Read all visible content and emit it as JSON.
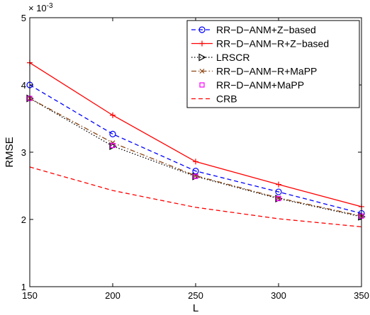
{
  "chart_data": {
    "type": "line",
    "xlabel": "L",
    "ylabel": "RMSE",
    "y_exponent_label": "× 10",
    "y_exponent_power": "-3",
    "xlim": [
      150,
      350
    ],
    "ylim": [
      1,
      5
    ],
    "x_ticks": [
      150,
      200,
      250,
      300,
      350
    ],
    "y_ticks": [
      1,
      2,
      3,
      4,
      5
    ],
    "grid": false,
    "legend_position": "top-right",
    "x": [
      150,
      200,
      250,
      300,
      350
    ],
    "series": [
      {
        "name": "RR−D−ANM+Z−based",
        "values": [
          4.0,
          3.27,
          2.72,
          2.41,
          2.09
        ],
        "color": "#0000ff",
        "dash": "dashed",
        "marker": "circle"
      },
      {
        "name": "RR−D−ANM−R+Z−based",
        "values": [
          4.33,
          3.55,
          2.86,
          2.52,
          2.19
        ],
        "color": "#ff0000",
        "dash": "solid",
        "marker": "plus"
      },
      {
        "name": "LRSCR",
        "values": [
          3.8,
          3.09,
          2.64,
          2.31,
          2.04
        ],
        "color": "#000000",
        "dash": "dotted",
        "marker": "triangle-right"
      },
      {
        "name": "RR−D−ANM−R+MaPP",
        "values": [
          3.8,
          3.14,
          2.65,
          2.32,
          2.05
        ],
        "color": "#8b4513",
        "dash": "dashdot",
        "marker": "x"
      },
      {
        "name": "RR−D−ANM+MaPP",
        "values": [
          3.8,
          3.1,
          2.64,
          2.31,
          2.05
        ],
        "color": "#ff00ff",
        "dash": "none",
        "marker": "square"
      },
      {
        "name": "CRB",
        "values": [
          2.78,
          2.43,
          2.18,
          2.01,
          1.89
        ],
        "color": "#ff0000",
        "dash": "dashed",
        "marker": "none"
      }
    ]
  }
}
